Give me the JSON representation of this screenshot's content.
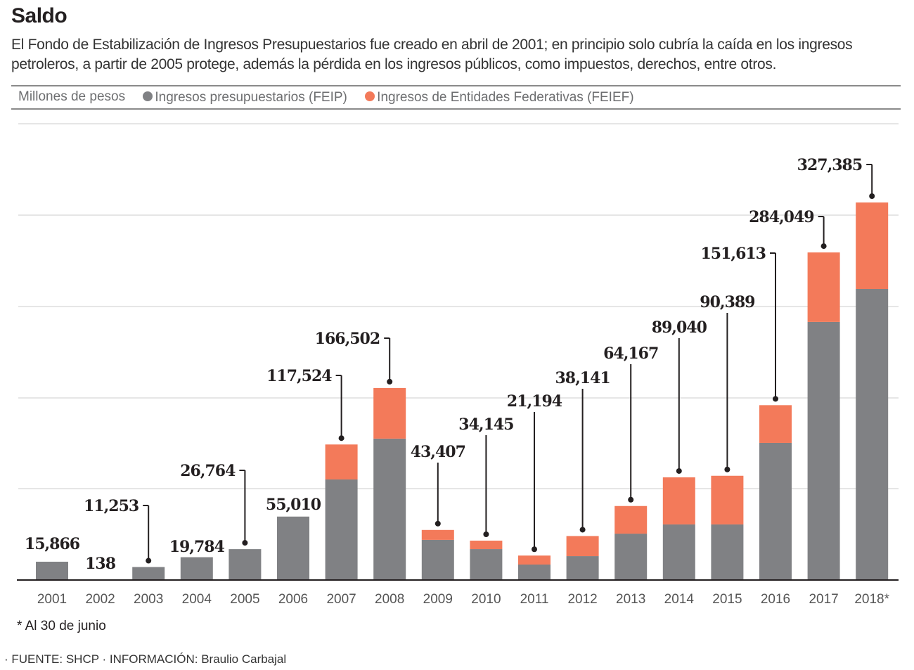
{
  "header": {
    "title": "Saldo",
    "description": "El Fondo de Estabilización de Ingresos Presupuestarios fue creado en abril de 2001; en principio solo cubría la caída en los ingresos petroleros, a partir de 2005 protege, además la pérdida en los ingresos públicos, como impuestos, derechos, entre otros."
  },
  "legend": {
    "unit": "Millones de pesos",
    "items": [
      {
        "label": "Ingresos presupuestarios (FEIP)",
        "color": "#808184"
      },
      {
        "label": "Ingresos de Entidades Federativas (FEIEF)",
        "color": "#f37a5a"
      }
    ]
  },
  "footnote": "* Al 30 de junio",
  "source": "· FUENTE: SHCP · INFORMACIÓN: Braulio Carbajal",
  "chart_data": {
    "type": "bar",
    "stacked": true,
    "title": "Saldo",
    "xlabel": "",
    "ylabel": "Millones de pesos",
    "ylim": [
      0,
      395000
    ],
    "grid": true,
    "legend_position": "top",
    "categories": [
      "2001",
      "2002",
      "2003",
      "2004",
      "2005",
      "2006",
      "2007",
      "2008",
      "2009",
      "2010",
      "2011",
      "2012",
      "2013",
      "2014",
      "2015",
      "2016",
      "2017",
      "2018*"
    ],
    "totals": [
      15866,
      138,
      11253,
      19784,
      26764,
      55010,
      117524,
      166502,
      43407,
      34145,
      21194,
      38141,
      64167,
      89040,
      90389,
      151613,
      284049,
      327385
    ],
    "total_labels": [
      "15,866",
      "138",
      "11,253",
      "19,784",
      "26,764",
      "55,010",
      "117,524",
      "166,502",
      "43,407",
      "34,145",
      "21,194",
      "38,141",
      "64,167",
      "89,040",
      "90,389",
      "151,613",
      "284,049",
      "327,385"
    ],
    "series": [
      {
        "name": "Ingresos presupuestarios (FEIP)",
        "color": "#808184",
        "values": [
          15866,
          138,
          11253,
          19784,
          26764,
          55010,
          87200,
          122600,
          34800,
          26800,
          13400,
          20700,
          40200,
          48200,
          48200,
          118900,
          223800,
          252400
        ]
      },
      {
        "name": "Ingresos de Entidades Federativas (FEIEF)",
        "color": "#f37a5a",
        "values": [
          0,
          0,
          0,
          0,
          0,
          0,
          30324,
          43902,
          8607,
          7345,
          7794,
          17441,
          23967,
          40840,
          42189,
          32713,
          60249,
          74985
        ]
      }
    ]
  }
}
